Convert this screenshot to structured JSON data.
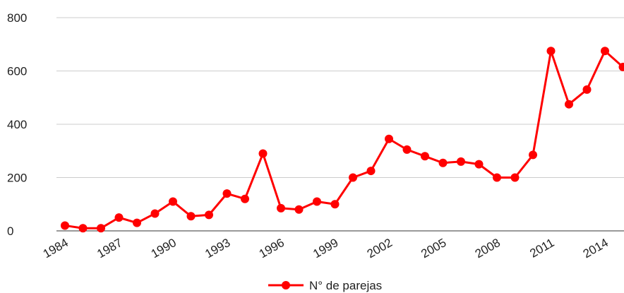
{
  "chart_data": {
    "type": "line",
    "categories": [
      "1984",
      null,
      null,
      "1987",
      null,
      null,
      "1990",
      null,
      null,
      "1993",
      null,
      null,
      "1996",
      null,
      null,
      "1999",
      null,
      null,
      "2002",
      null,
      null,
      "2005",
      null,
      null,
      "2008",
      null,
      null,
      "2011",
      null,
      null,
      "2014",
      null
    ],
    "series": [
      {
        "name": "N° de parejas",
        "color": "#ff0000",
        "values": [
          20,
          10,
          10,
          50,
          30,
          65,
          110,
          55,
          60,
          140,
          120,
          290,
          85,
          80,
          110,
          100,
          200,
          225,
          345,
          305,
          280,
          255,
          260,
          250,
          200,
          200,
          285,
          675,
          475,
          530,
          675,
          615
        ]
      }
    ],
    "ylim": [
      0,
      800
    ],
    "yticks": [
      0,
      200,
      400,
      600,
      800
    ],
    "grid": true,
    "legend": "bottom"
  }
}
